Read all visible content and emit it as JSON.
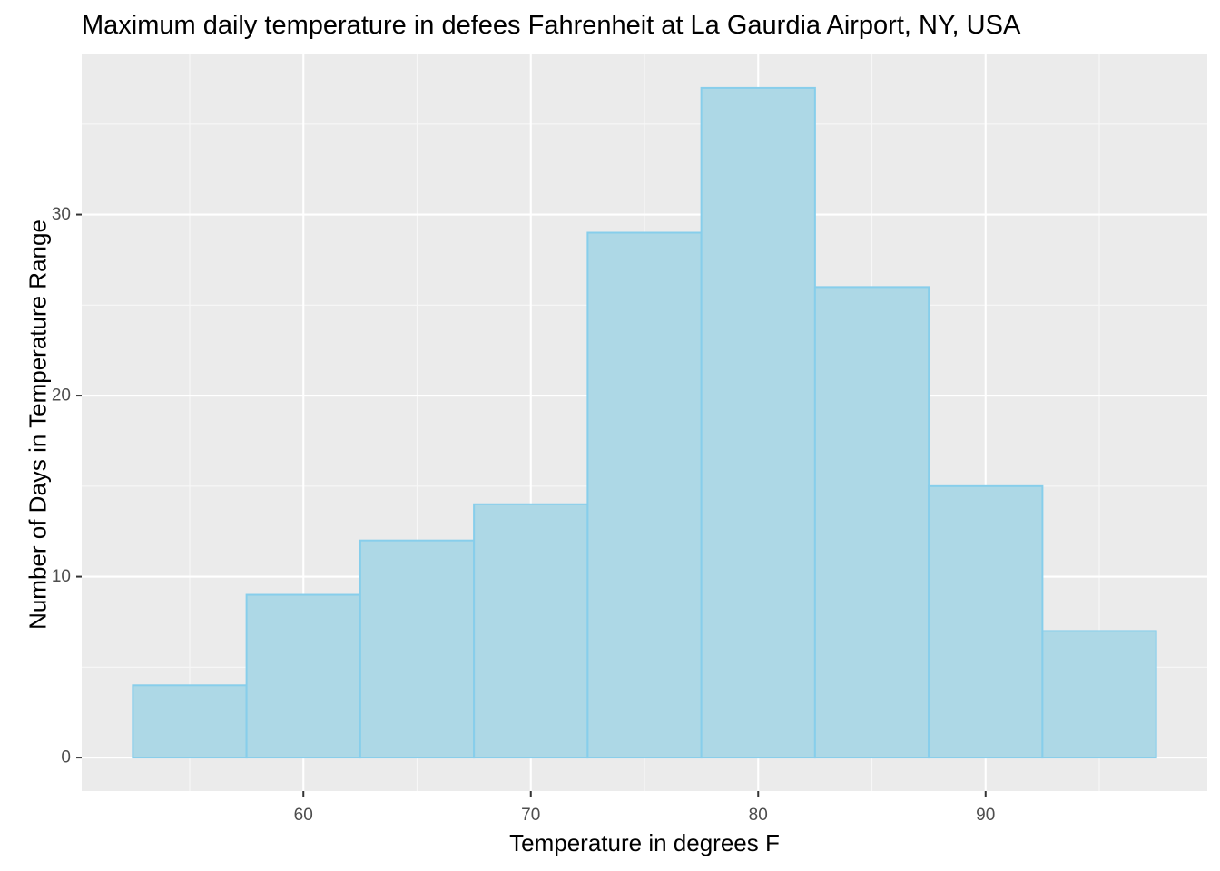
{
  "chart_data": {
    "type": "bar",
    "title": "Maximum daily temperature in defees Fahrenheit at La Gaurdia Airport, NY, USA",
    "xlabel": "Temperature in degrees F",
    "ylabel": "Number of Days in Temperature Range",
    "bins": [
      {
        "from": 52.5,
        "to": 57.5,
        "value": 4
      },
      {
        "from": 57.5,
        "to": 62.5,
        "value": 9
      },
      {
        "from": 62.5,
        "to": 67.5,
        "value": 12
      },
      {
        "from": 67.5,
        "to": 72.5,
        "value": 14
      },
      {
        "from": 72.5,
        "to": 77.5,
        "value": 29
      },
      {
        "from": 77.5,
        "to": 82.5,
        "value": 37
      },
      {
        "from": 82.5,
        "to": 87.5,
        "value": 26
      },
      {
        "from": 87.5,
        "to": 92.5,
        "value": 15
      },
      {
        "from": 92.5,
        "to": 97.5,
        "value": 7
      }
    ],
    "xlim": [
      50.25,
      99.75
    ],
    "ylim": [
      -1.85,
      38.85
    ],
    "x_ticks": [
      60,
      70,
      80,
      90
    ],
    "x_tick_labels": [
      "60",
      "70",
      "80",
      "90"
    ],
    "x_minor_ticks": [
      55,
      65,
      75,
      85,
      95
    ],
    "y_ticks": [
      0,
      10,
      20,
      30
    ],
    "y_tick_labels": [
      "0",
      "10",
      "20",
      "30"
    ],
    "y_minor_ticks": [
      5,
      15,
      25,
      35
    ],
    "grid": true,
    "colors": {
      "bar_fill": "#add8e6",
      "bar_border": "#87ceeb",
      "panel_background": "#ebebeb",
      "grid_major": "#ffffff",
      "grid_minor": "#f7f7f7",
      "tick_label": "#4d4d4d"
    }
  }
}
